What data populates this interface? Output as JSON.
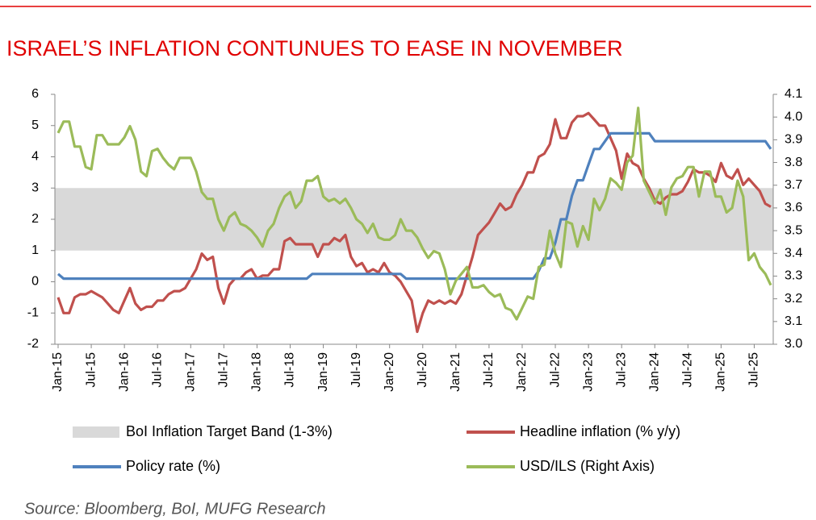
{
  "chart_data": {
    "type": "line",
    "title": "ISRAEL’S INFLATION CONTUNUES TO EASE IN NOVEMBER",
    "source": "Source: Bloomberg, BoI, MUFG Research",
    "categories": [
      "Jan-15",
      null,
      null,
      null,
      null,
      null,
      "Jul-15",
      null,
      null,
      null,
      null,
      null,
      "Jan-16",
      null,
      null,
      null,
      null,
      null,
      "Jul-16",
      null,
      null,
      null,
      null,
      null,
      "Jan-17",
      null,
      null,
      null,
      null,
      null,
      "Jul-17",
      null,
      null,
      null,
      null,
      null,
      "Jan-18",
      null,
      null,
      null,
      null,
      null,
      "Jul-18",
      null,
      null,
      null,
      null,
      null,
      "Jan-19",
      null,
      null,
      null,
      null,
      null,
      "Jul-19",
      null,
      null,
      null,
      null,
      null,
      "Jan-20",
      null,
      null,
      null,
      null,
      null,
      "Jul-20",
      null,
      null,
      null,
      null,
      null,
      "Jan-21",
      null,
      null,
      null,
      null,
      null,
      "Jul-21",
      null,
      null,
      null,
      null,
      null,
      "Jan-22",
      null,
      null,
      null,
      null,
      null,
      "Jul-22",
      null,
      null,
      null,
      null,
      null,
      "Jan-23",
      null,
      null,
      null,
      null,
      null,
      "Jul-23",
      null,
      null,
      null,
      null,
      null,
      "Jan-24",
      null,
      null,
      null,
      null,
      null,
      "Jul-24",
      null,
      null,
      null,
      null,
      null,
      "Jan-25",
      null,
      null,
      null,
      null,
      null,
      "Jul-25",
      null,
      null,
      null
    ],
    "band": {
      "name": "BoI Inflation Target Band (1-3%)",
      "range": [
        1,
        3
      ],
      "color": "#d9d9d9"
    },
    "series": [
      {
        "name": "Headline inflation (% y/y)",
        "color": "#c0504d",
        "axis": "y",
        "values": [
          -0.5,
          -1.0,
          -1.0,
          -0.5,
          -0.4,
          -0.4,
          -0.3,
          -0.4,
          -0.5,
          -0.7,
          -0.9,
          -1.0,
          -0.6,
          -0.2,
          -0.7,
          -0.9,
          -0.8,
          -0.8,
          -0.6,
          -0.6,
          -0.4,
          -0.3,
          -0.3,
          -0.2,
          0.1,
          0.4,
          0.9,
          0.7,
          0.8,
          -0.2,
          -0.7,
          -0.1,
          0.1,
          0.1,
          0.3,
          0.4,
          0.1,
          0.2,
          0.2,
          0.4,
          0.4,
          1.3,
          1.4,
          1.2,
          1.2,
          1.2,
          1.2,
          0.8,
          1.2,
          1.2,
          1.4,
          1.3,
          1.5,
          0.8,
          0.5,
          0.6,
          0.3,
          0.4,
          0.3,
          0.6,
          0.3,
          0.2,
          0.0,
          -0.3,
          -0.6,
          -1.6,
          -1.0,
          -0.6,
          -0.7,
          -0.6,
          -0.7,
          -0.6,
          -0.7,
          -0.4,
          0.2,
          0.8,
          1.5,
          1.7,
          1.9,
          2.2,
          2.5,
          2.3,
          2.4,
          2.8,
          3.1,
          3.5,
          3.5,
          4.0,
          4.1,
          4.4,
          5.2,
          4.6,
          4.6,
          5.1,
          5.3,
          5.3,
          5.4,
          5.2,
          5.0,
          5.0,
          4.6,
          4.2,
          3.3,
          4.1,
          3.8,
          3.7,
          3.3,
          3.0,
          2.6,
          2.5,
          2.7,
          2.8,
          2.8,
          2.9,
          3.2,
          3.6,
          3.5,
          3.5,
          3.4,
          3.2,
          3.8,
          3.4,
          3.3,
          3.6,
          3.1,
          3.3,
          3.1,
          2.9,
          2.5,
          2.4
        ]
      },
      {
        "name": "Policy rate (%)",
        "color": "#4f81bd",
        "axis": "y",
        "values": [
          0.25,
          0.1,
          0.1,
          0.1,
          0.1,
          0.1,
          0.1,
          0.1,
          0.1,
          0.1,
          0.1,
          0.1,
          0.1,
          0.1,
          0.1,
          0.1,
          0.1,
          0.1,
          0.1,
          0.1,
          0.1,
          0.1,
          0.1,
          0.1,
          0.1,
          0.1,
          0.1,
          0.1,
          0.1,
          0.1,
          0.1,
          0.1,
          0.1,
          0.1,
          0.1,
          0.1,
          0.1,
          0.1,
          0.1,
          0.1,
          0.1,
          0.1,
          0.1,
          0.1,
          0.1,
          0.1,
          0.25,
          0.25,
          0.25,
          0.25,
          0.25,
          0.25,
          0.25,
          0.25,
          0.25,
          0.25,
          0.25,
          0.25,
          0.25,
          0.25,
          0.25,
          0.25,
          0.25,
          0.1,
          0.1,
          0.1,
          0.1,
          0.1,
          0.1,
          0.1,
          0.1,
          0.1,
          0.1,
          0.1,
          0.1,
          0.1,
          0.1,
          0.1,
          0.1,
          0.1,
          0.1,
          0.1,
          0.1,
          0.1,
          0.1,
          0.1,
          0.1,
          0.35,
          0.75,
          0.75,
          1.25,
          2.0,
          2.0,
          2.75,
          3.25,
          3.25,
          3.75,
          4.25,
          4.25,
          4.5,
          4.75,
          4.75,
          4.75,
          4.75,
          4.75,
          4.75,
          4.75,
          4.75,
          4.5,
          4.5,
          4.5,
          4.5,
          4.5,
          4.5,
          4.5,
          4.5,
          4.5,
          4.5,
          4.5,
          4.5,
          4.5,
          4.5,
          4.5,
          4.5,
          4.5,
          4.5,
          4.5,
          4.5,
          4.5,
          4.25
        ]
      },
      {
        "name": "USD/ILS (Right Axis)",
        "color": "#9bbb59",
        "axis": "y2",
        "values": [
          3.93,
          3.98,
          3.98,
          3.87,
          3.87,
          3.78,
          3.77,
          3.92,
          3.92,
          3.88,
          3.88,
          3.88,
          3.91,
          3.96,
          3.9,
          3.76,
          3.74,
          3.85,
          3.86,
          3.82,
          3.79,
          3.77,
          3.82,
          3.82,
          3.82,
          3.76,
          3.67,
          3.64,
          3.64,
          3.55,
          3.5,
          3.56,
          3.58,
          3.53,
          3.52,
          3.5,
          3.47,
          3.43,
          3.5,
          3.53,
          3.6,
          3.65,
          3.67,
          3.6,
          3.63,
          3.72,
          3.72,
          3.74,
          3.65,
          3.63,
          3.64,
          3.62,
          3.64,
          3.6,
          3.55,
          3.53,
          3.49,
          3.53,
          3.47,
          3.46,
          3.46,
          3.48,
          3.55,
          3.5,
          3.5,
          3.47,
          3.42,
          3.38,
          3.41,
          3.4,
          3.33,
          3.22,
          3.28,
          3.31,
          3.34,
          3.25,
          3.25,
          3.26,
          3.23,
          3.21,
          3.22,
          3.16,
          3.15,
          3.11,
          3.16,
          3.21,
          3.2,
          3.34,
          3.35,
          3.5,
          3.4,
          3.34,
          3.54,
          3.53,
          3.43,
          3.52,
          3.46,
          3.64,
          3.59,
          3.64,
          3.73,
          3.71,
          3.68,
          3.8,
          3.83,
          4.04,
          3.72,
          3.67,
          3.62,
          3.68,
          3.57,
          3.69,
          3.73,
          3.74,
          3.78,
          3.78,
          3.65,
          3.76,
          3.76,
          3.65,
          3.65,
          3.58,
          3.6,
          3.72,
          3.65,
          3.37,
          3.4,
          3.34,
          3.31,
          3.26
        ]
      }
    ],
    "ylim": [
      -2,
      6
    ],
    "yticks": [
      -2,
      -1,
      0,
      1,
      2,
      3,
      4,
      5,
      6
    ],
    "y2lim": [
      3.0,
      4.1
    ],
    "y2ticks": [
      {
        "value": 3.0,
        "label": "3.0"
      },
      3.1,
      3.2,
      3.3,
      3.4,
      3.5,
      3.6,
      3.7,
      3.8,
      3.9,
      {
        "value": 4.0,
        "label": "4.0"
      },
      4.1
    ]
  }
}
